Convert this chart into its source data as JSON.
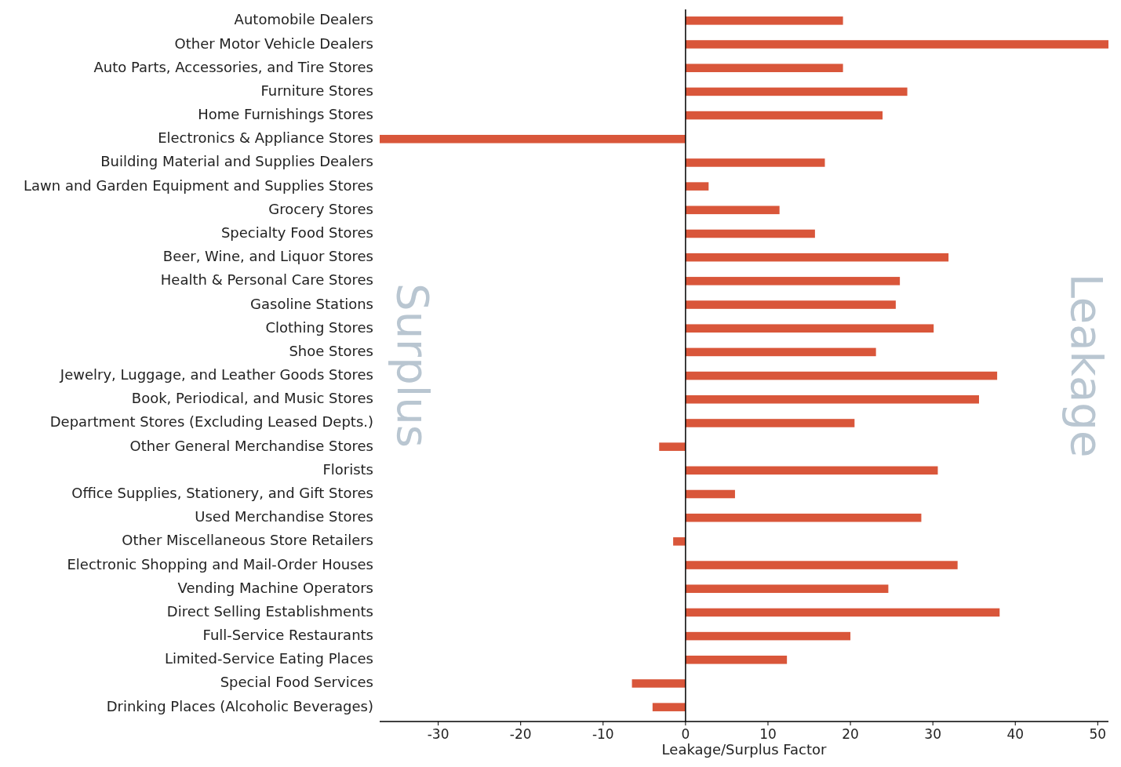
{
  "chart_data": {
    "type": "bar",
    "orientation": "horizontal",
    "xlabel": "Leakage/Surplus Factor",
    "categories": [
      "Automobile Dealers",
      "Other Motor Vehicle Dealers",
      "Auto Parts, Accessories, and Tire Stores",
      "Furniture Stores",
      "Home Furnishings Stores",
      "Electronics & Appliance Stores",
      "Building Material and Supplies Dealers",
      "Lawn and Garden Equipment and Supplies Stores",
      "Grocery Stores",
      "Specialty Food Stores",
      "Beer, Wine, and Liquor Stores",
      "Health & Personal Care Stores",
      "Gasoline Stations",
      "Clothing Stores",
      "Shoe Stores",
      "Jewelry, Luggage, and Leather Goods Stores",
      "Book, Periodical, and Music Stores",
      "Department Stores (Excluding Leased Depts.)",
      "Other General Merchandise Stores",
      "Florists",
      "Office Supplies, Stationery, and Gift Stores",
      "Used Merchandise Stores",
      "Other Miscellaneous Store Retailers",
      "Electronic Shopping and Mail-Order Houses",
      "Vending Machine Operators",
      "Direct Selling Establishments",
      "Full-Service Restaurants",
      "Limited-Service Eating Places",
      "Special Food Services",
      "Drinking Places (Alcoholic Beverages)"
    ],
    "values": [
      19.1,
      51.3,
      19.1,
      26.9,
      23.9,
      -37.1,
      16.9,
      2.8,
      11.4,
      15.7,
      31.9,
      26.0,
      25.5,
      30.1,
      23.1,
      37.8,
      35.6,
      20.5,
      -3.2,
      30.6,
      6.0,
      28.6,
      -1.5,
      33.0,
      24.6,
      38.1,
      20.0,
      12.3,
      -6.5,
      -4.0
    ],
    "color": "#d9563a",
    "xlim": [
      -37.1,
      51.3
    ],
    "xticks": [
      -30,
      -20,
      -10,
      0,
      10,
      20,
      30,
      40,
      50
    ],
    "ref_lines": [
      {
        "axis": "x",
        "value": 0,
        "color": "#000000"
      }
    ],
    "annotations": [
      "Surplus",
      "Leakage"
    ],
    "grid": false
  }
}
